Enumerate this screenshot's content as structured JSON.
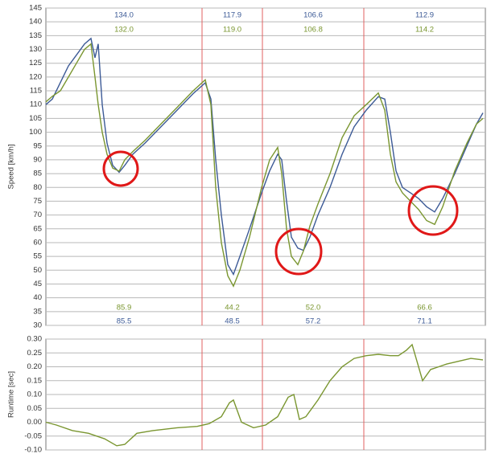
{
  "chart_data": [
    {
      "type": "line",
      "y_label": "Speed [km/h]",
      "x": [
        0,
        8,
        18,
        28,
        38,
        48,
        56,
        61,
        65,
        70,
        76,
        83,
        91,
        98,
        108,
        123,
        143,
        163,
        183,
        198,
        205,
        211,
        218,
        226,
        233,
        241,
        253,
        268,
        278,
        288,
        293,
        299,
        305,
        313,
        320,
        328,
        338,
        353,
        368,
        383,
        398,
        413,
        421,
        428,
        435,
        443,
        453,
        463,
        473,
        483,
        493,
        508,
        523,
        535,
        543
      ],
      "xlim": [
        0,
        546
      ],
      "ylim": [
        30,
        145
      ],
      "yticks": [
        30,
        35,
        40,
        45,
        50,
        55,
        60,
        65,
        70,
        75,
        80,
        85,
        90,
        95,
        100,
        105,
        110,
        115,
        120,
        125,
        130,
        135,
        140,
        145
      ],
      "grid": true,
      "sector_lines": [
        194,
        269,
        395
      ],
      "sector_line_color": "#e06060",
      "series": [
        {
          "color": "#3c5a96",
          "values": [
            110,
            112,
            118,
            124,
            128,
            132,
            134,
            127,
            132,
            110,
            96,
            88,
            85.5,
            88,
            92,
            96,
            102,
            108,
            114,
            117.9,
            112,
            90,
            70,
            52,
            48.5,
            55,
            65,
            78,
            86,
            92,
            90,
            75,
            62,
            58,
            57.2,
            62,
            70,
            80,
            92,
            102,
            108,
            112.9,
            112,
            100,
            86,
            80,
            78,
            76,
            73,
            71.1,
            76,
            85,
            95,
            103,
            107
          ],
          "sector_max": [
            134,
            117.9,
            106.6,
            112.9
          ],
          "sector_max_labels": [
            "134.0",
            "117.9",
            "106.6",
            "112.9"
          ],
          "sector_min": [
            85.5,
            48.5,
            57.2,
            71.1
          ],
          "sector_min_labels": [
            "85.5",
            "48.5",
            "57.2",
            "71.1"
          ]
        },
        {
          "color": "#7a9630",
          "values": [
            111,
            113,
            115,
            120,
            125,
            130,
            132,
            120,
            110,
            100,
            92,
            87,
            85.9,
            90,
            93,
            97,
            103,
            109,
            115,
            119,
            110,
            80,
            60,
            48,
            44.2,
            50,
            62,
            80,
            90,
            94.5,
            85,
            65,
            55,
            52,
            57,
            66,
            74,
            85,
            98,
            106,
            110,
            114.2,
            108,
            92,
            82,
            78,
            75,
            72,
            68,
            66.6,
            73,
            86,
            96,
            103,
            105
          ],
          "sector_max": [
            132,
            119,
            106.8,
            114.2
          ],
          "sector_max_labels": [
            "132.0",
            "119.0",
            "106.8",
            "114.2"
          ],
          "sector_min": [
            85.9,
            44.2,
            52,
            66.6
          ],
          "sector_min_labels": [
            "85.9",
            "44.2",
            "52.0",
            "66.6"
          ]
        }
      ]
    },
    {
      "type": "line",
      "y_label": "Runtime [sec]",
      "x": [
        0,
        13,
        33,
        53,
        73,
        88,
        98,
        113,
        133,
        163,
        188,
        203,
        218,
        228,
        233,
        243,
        258,
        273,
        288,
        301,
        308,
        315,
        323,
        338,
        353,
        368,
        383,
        398,
        413,
        428,
        438,
        448,
        455,
        461,
        468,
        478,
        488,
        498,
        513,
        528,
        543
      ],
      "xlim": [
        0,
        546
      ],
      "ylim": [
        -0.1,
        0.3
      ],
      "yticks": [
        {
          "value": -0.1,
          "label": "-0.10"
        },
        {
          "value": -0.05,
          "label": "-0.05"
        },
        {
          "value": 0,
          "label": "0.00"
        },
        {
          "value": 0.05,
          "label": "0.05"
        },
        {
          "value": 0.1,
          "label": "0.10"
        },
        {
          "value": 0.15,
          "label": "0.15"
        },
        {
          "value": 0.2,
          "label": "0.20"
        },
        {
          "value": 0.25,
          "label": "0.25"
        },
        {
          "value": 0.3,
          "label": "0.30"
        }
      ],
      "grid": true,
      "series": [
        {
          "color": "#7a9630",
          "values": [
            0,
            -0.01,
            -0.03,
            -0.04,
            -0.06,
            -0.085,
            -0.08,
            -0.04,
            -0.03,
            -0.02,
            -0.015,
            -0.005,
            0.02,
            0.07,
            0.08,
            0,
            -0.02,
            -0.01,
            0.02,
            0.09,
            0.1,
            0.01,
            0.02,
            0.08,
            0.15,
            0.2,
            0.23,
            0.24,
            0.245,
            0.24,
            0.24,
            0.26,
            0.28,
            0.22,
            0.15,
            0.19,
            0.2,
            0.21,
            0.22,
            0.23,
            0.225
          ]
        }
      ]
    }
  ]
}
